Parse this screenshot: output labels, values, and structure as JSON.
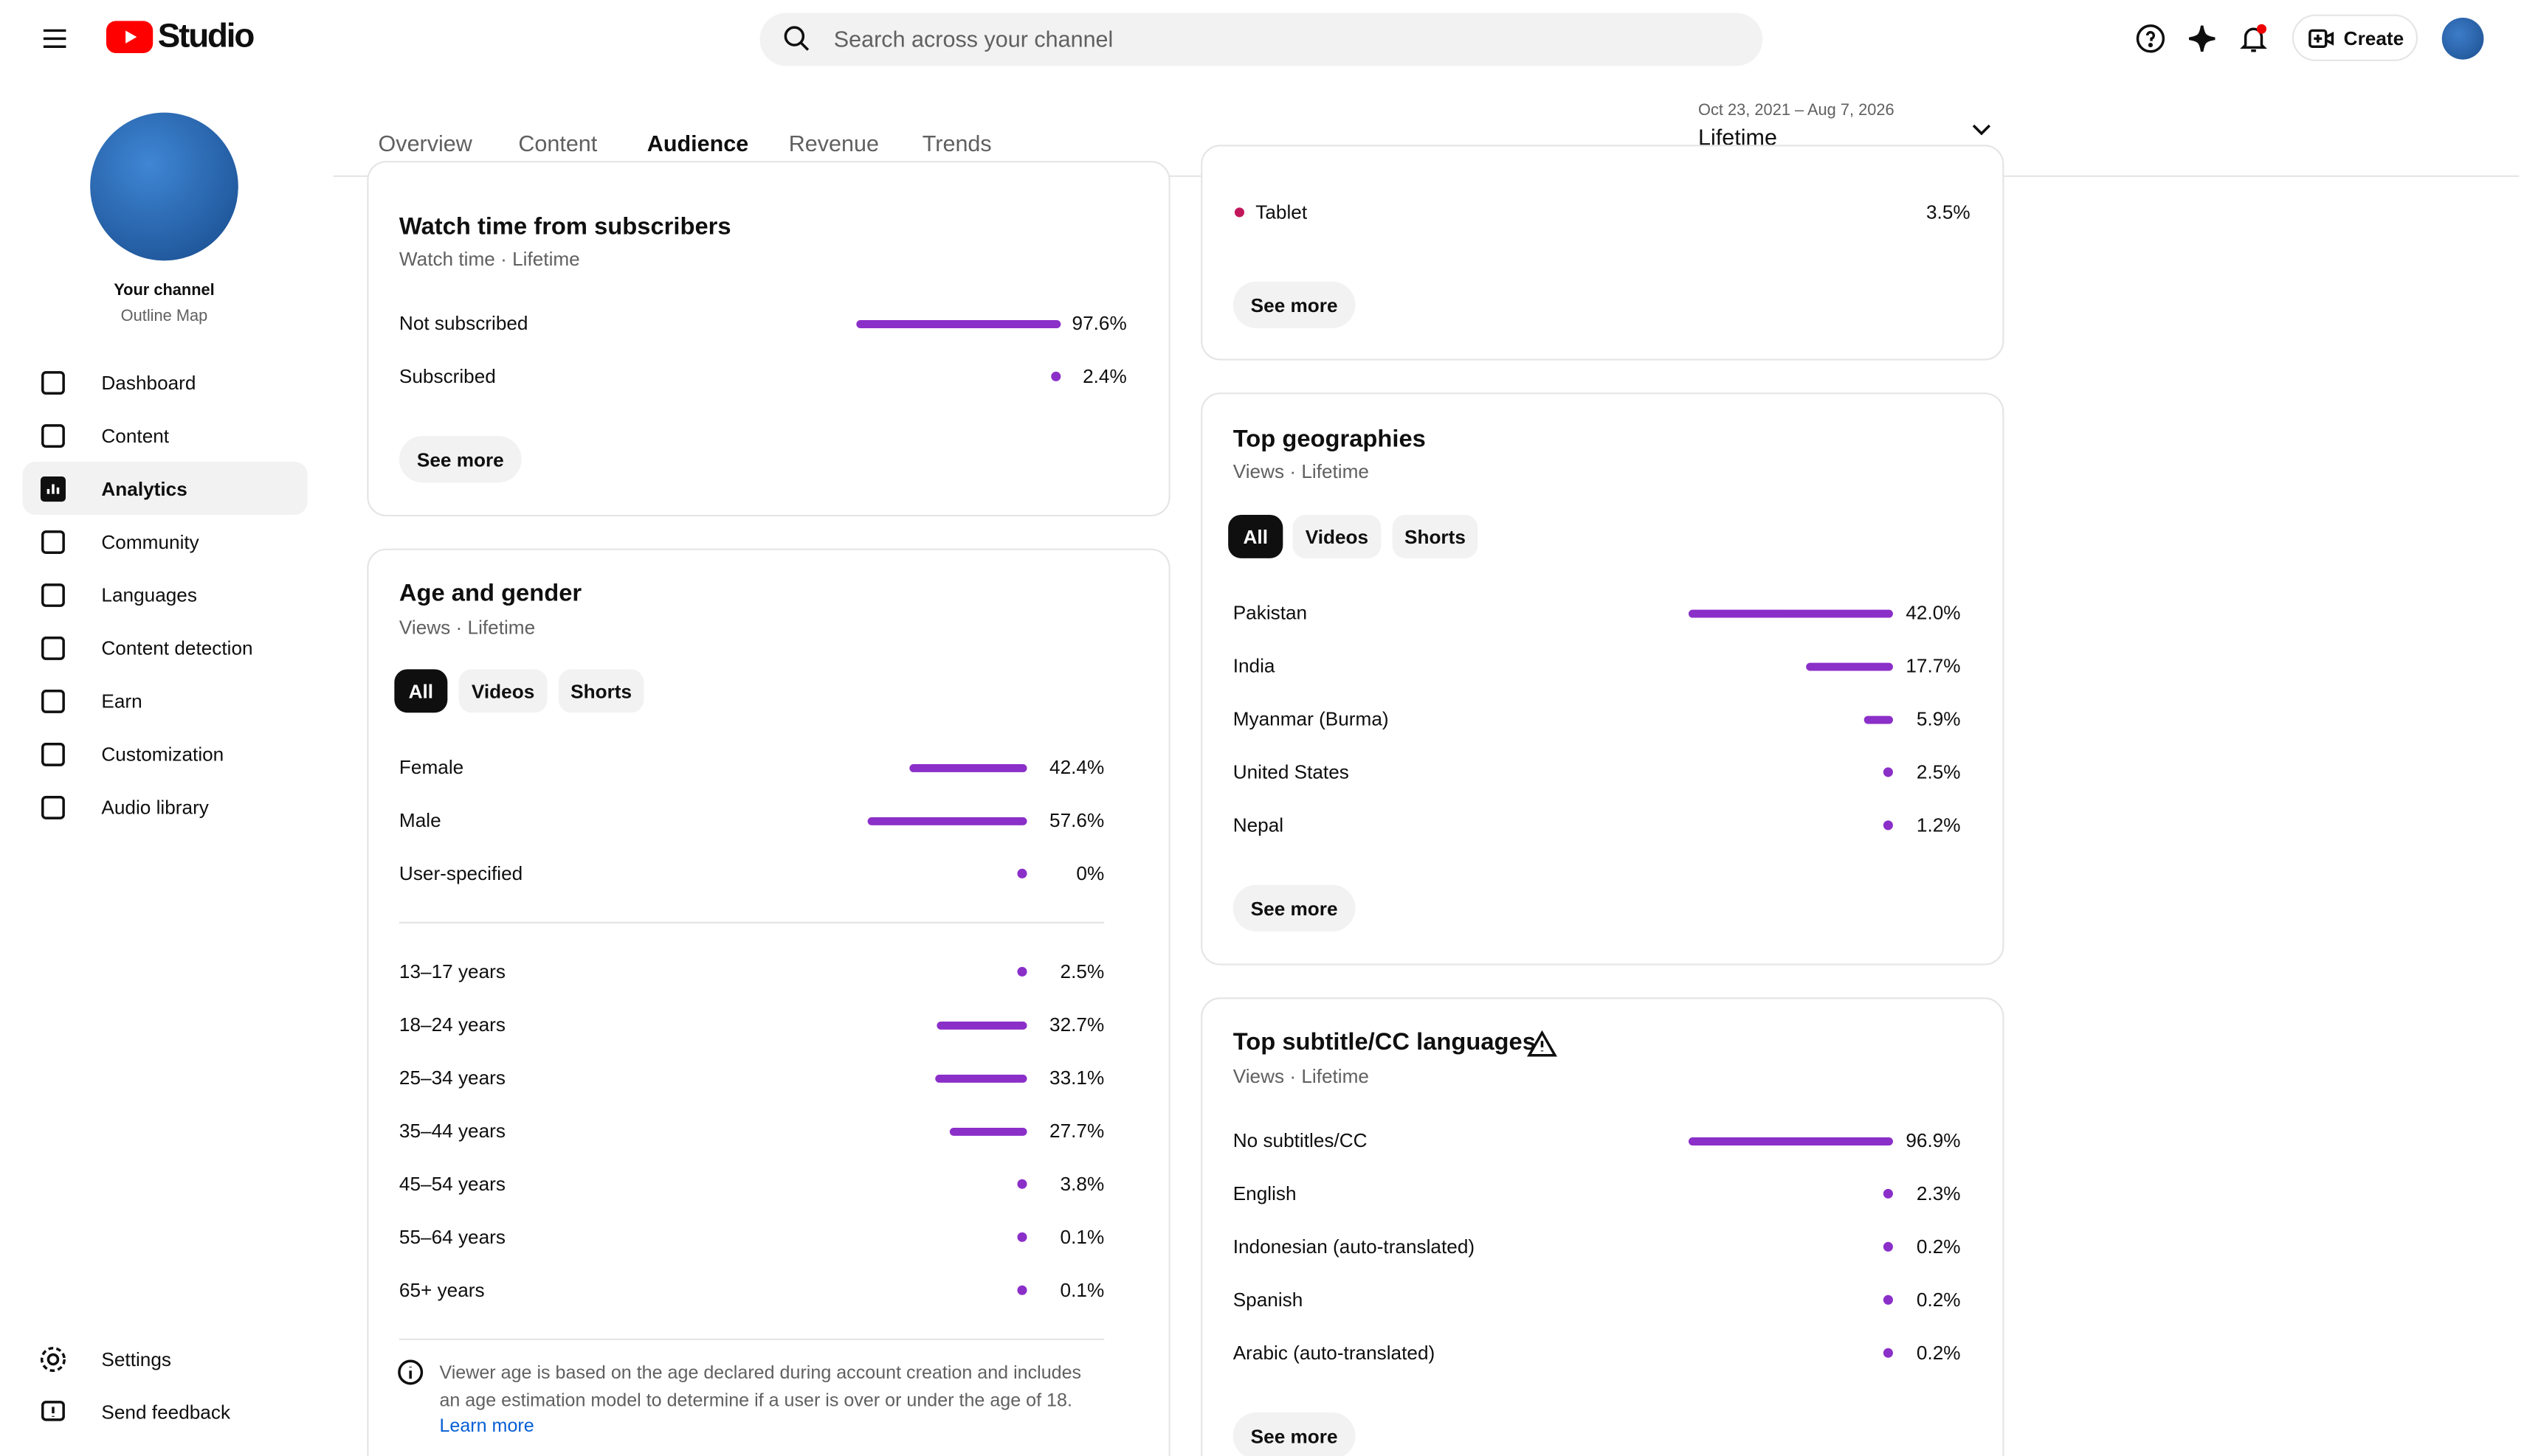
{
  "header": {
    "logo_text": "Studio",
    "search_placeholder": "Search across your channel",
    "create": "Create"
  },
  "sidebar": {
    "channel_title": "Your channel",
    "channel_name": "Outline Map",
    "nav": [
      "Dashboard",
      "Content",
      "Analytics",
      "Community",
      "Languages",
      "Content detection",
      "Earn",
      "Customization",
      "Audio library"
    ],
    "bottom": [
      "Settings",
      "Send feedback"
    ]
  },
  "tabs": [
    "Overview",
    "Content",
    "Audience",
    "Revenue",
    "Trends"
  ],
  "date_range": {
    "dates": "Oct 23, 2021 – Aug 7, 2026",
    "period": "Lifetime"
  },
  "watch_time": {
    "title": "Watch time from subscribers",
    "subtitle": "Watch time · Lifetime",
    "rows": [
      {
        "label": "Not subscribed",
        "value": 97.6,
        "value_label": "97.6%"
      },
      {
        "label": "Subscribed",
        "value": 2.4,
        "value_label": "2.4%"
      }
    ],
    "button": "See more"
  },
  "age_gender": {
    "title": "Age and gender",
    "subtitle": "Views · Lifetime",
    "filters": [
      "All",
      "Videos",
      "Shorts"
    ],
    "gender_rows": [
      {
        "label": "Female",
        "value": 42.4,
        "value_label": "42.4%"
      },
      {
        "label": "Male",
        "value": 57.6,
        "value_label": "57.6%"
      },
      {
        "label": "User-specified",
        "value": 0,
        "value_label": "0%"
      }
    ],
    "age_rows": [
      {
        "label": "13–17 years",
        "value": 2.5,
        "value_label": "2.5%"
      },
      {
        "label": "18–24 years",
        "value": 32.7,
        "value_label": "32.7%"
      },
      {
        "label": "25–34 years",
        "value": 33.1,
        "value_label": "33.1%"
      },
      {
        "label": "35–44 years",
        "value": 27.7,
        "value_label": "27.7%"
      },
      {
        "label": "45–54 years",
        "value": 3.8,
        "value_label": "3.8%"
      },
      {
        "label": "55–64 years",
        "value": 0.1,
        "value_label": "0.1%"
      },
      {
        "label": "65+ years",
        "value": 0.1,
        "value_label": "0.1%"
      }
    ],
    "note": "Viewer age is based on the age declared during account creation and includes an age estimation model to determine if a user is over or under the age of 18.",
    "learn_more": "Learn more"
  },
  "device": {
    "rows": [
      {
        "label": "Tablet",
        "value": 3.5,
        "value_label": "3.5%",
        "color": "#c2185b"
      }
    ],
    "button": "See more"
  },
  "geographies": {
    "title": "Top geographies",
    "subtitle": "Views · Lifetime",
    "filters": [
      "All",
      "Videos",
      "Shorts"
    ],
    "rows": [
      {
        "label": "Pakistan",
        "value": 42.0,
        "value_label": "42.0%"
      },
      {
        "label": "India",
        "value": 17.7,
        "value_label": "17.7%"
      },
      {
        "label": "Myanmar (Burma)",
        "value": 5.9,
        "value_label": "5.9%"
      },
      {
        "label": "United States",
        "value": 2.5,
        "value_label": "2.5%"
      },
      {
        "label": "Nepal",
        "value": 1.2,
        "value_label": "1.2%"
      }
    ],
    "button": "See more"
  },
  "subtitles": {
    "title": "Top subtitle/CC languages",
    "subtitle": "Views · Lifetime",
    "rows": [
      {
        "label": "No subtitles/CC",
        "value": 96.9,
        "value_label": "96.9%"
      },
      {
        "label": "English",
        "value": 2.3,
        "value_label": "2.3%"
      },
      {
        "label": "Indonesian (auto-translated)",
        "value": 0.2,
        "value_label": "0.2%"
      },
      {
        "label": "Spanish",
        "value": 0.2,
        "value_label": "0.2%"
      },
      {
        "label": "Arabic (auto-translated)",
        "value": 0.2,
        "value_label": "0.2%"
      }
    ],
    "button": "See more"
  },
  "bar_color": "#8b2fc9"
}
